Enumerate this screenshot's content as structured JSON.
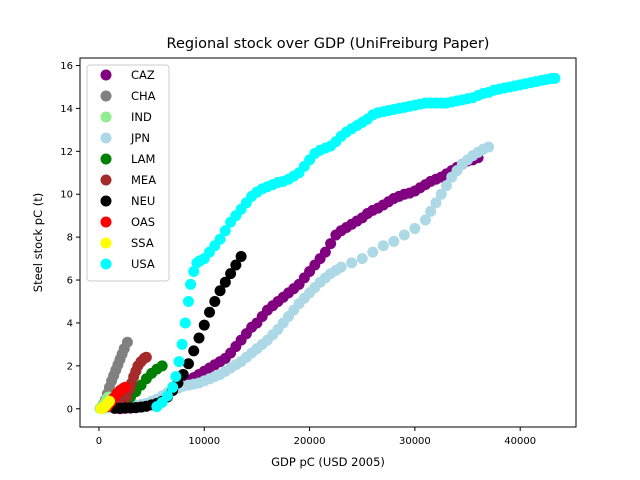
{
  "chart_data": {
    "type": "scatter",
    "title": "Regional stock over GDP (UniFreiburg Paper)",
    "xlabel": "GDP pC (USD 2005)",
    "ylabel": "Steel stock pC (t)",
    "xlim": [
      -1800,
      45300
    ],
    "ylim": [
      -0.85,
      16.35
    ],
    "x_ticks": [
      0,
      10000,
      20000,
      30000,
      40000
    ],
    "y_ticks": [
      0,
      2,
      4,
      6,
      8,
      10,
      12,
      14,
      16
    ],
    "grid": false,
    "legend_position": "top-left",
    "series": [
      {
        "name": "CAZ",
        "color": "#800080",
        "points": [
          [
            2000,
            0.0
          ],
          [
            2500,
            0.02
          ],
          [
            3000,
            0.03
          ],
          [
            3500,
            0.05
          ],
          [
            4000,
            0.08
          ],
          [
            4500,
            0.12
          ],
          [
            5000,
            0.2
          ],
          [
            5500,
            0.35
          ],
          [
            6000,
            0.55
          ],
          [
            6500,
            0.7
          ],
          [
            7000,
            0.85
          ],
          [
            7500,
            1.0
          ],
          [
            8000,
            1.15
          ],
          [
            8500,
            1.3
          ],
          [
            9000,
            1.45
          ],
          [
            9500,
            1.6
          ],
          [
            10000,
            1.75
          ],
          [
            10500,
            1.9
          ],
          [
            11000,
            2.05
          ],
          [
            11500,
            2.2
          ],
          [
            12000,
            2.35
          ],
          [
            12500,
            2.6
          ],
          [
            13000,
            2.9
          ],
          [
            13500,
            3.2
          ],
          [
            14000,
            3.5
          ],
          [
            14500,
            3.8
          ],
          [
            15000,
            4.0
          ],
          [
            15500,
            4.3
          ],
          [
            16000,
            4.6
          ],
          [
            16500,
            4.8
          ],
          [
            17000,
            5.0
          ],
          [
            17500,
            5.2
          ],
          [
            18000,
            5.4
          ],
          [
            18500,
            5.6
          ],
          [
            19000,
            5.8
          ],
          [
            19500,
            6.1
          ],
          [
            20000,
            6.4
          ],
          [
            20500,
            6.7
          ],
          [
            21000,
            7.0
          ],
          [
            21500,
            7.3
          ],
          [
            22000,
            7.7
          ],
          [
            22500,
            8.1
          ],
          [
            23000,
            8.3
          ],
          [
            23500,
            8.45
          ],
          [
            24000,
            8.6
          ],
          [
            24500,
            8.75
          ],
          [
            25000,
            8.9
          ],
          [
            25500,
            9.1
          ],
          [
            26000,
            9.25
          ],
          [
            26500,
            9.35
          ],
          [
            27000,
            9.5
          ],
          [
            27500,
            9.65
          ],
          [
            28000,
            9.8
          ],
          [
            28500,
            9.9
          ],
          [
            29000,
            10.0
          ],
          [
            29500,
            10.05
          ],
          [
            30000,
            10.15
          ],
          [
            30500,
            10.3
          ],
          [
            31000,
            10.45
          ],
          [
            31500,
            10.6
          ],
          [
            32000,
            10.7
          ],
          [
            32500,
            10.8
          ],
          [
            33000,
            10.95
          ],
          [
            33500,
            11.1
          ],
          [
            34000,
            11.25
          ],
          [
            34500,
            11.4
          ],
          [
            35000,
            11.55
          ],
          [
            35500,
            11.6
          ],
          [
            36000,
            11.7
          ]
        ]
      },
      {
        "name": "CHA",
        "color": "#808080",
        "points": [
          [
            200,
            0.05
          ],
          [
            400,
            0.2
          ],
          [
            600,
            0.4
          ],
          [
            800,
            0.7
          ],
          [
            1000,
            1.0
          ],
          [
            1200,
            1.3
          ],
          [
            1400,
            1.55
          ],
          [
            1600,
            1.8
          ],
          [
            1800,
            2.05
          ],
          [
            2000,
            2.3
          ],
          [
            2200,
            2.55
          ],
          [
            2400,
            2.8
          ],
          [
            2700,
            3.1
          ]
        ]
      },
      {
        "name": "IND",
        "color": "#90ee90",
        "points": [
          [
            100,
            0.02
          ],
          [
            200,
            0.05
          ],
          [
            300,
            0.1
          ],
          [
            400,
            0.15
          ],
          [
            500,
            0.22
          ],
          [
            600,
            0.3
          ],
          [
            700,
            0.4
          ],
          [
            800,
            0.5
          ],
          [
            900,
            0.55
          ]
        ]
      },
      {
        "name": "JPN",
        "color": "#add8e6",
        "points": [
          [
            500,
            0.02
          ],
          [
            1000,
            0.04
          ],
          [
            1500,
            0.06
          ],
          [
            2000,
            0.08
          ],
          [
            2500,
            0.1
          ],
          [
            3000,
            0.12
          ],
          [
            3500,
            0.15
          ],
          [
            4000,
            0.2
          ],
          [
            4500,
            0.25
          ],
          [
            5000,
            0.35
          ],
          [
            5500,
            0.45
          ],
          [
            6000,
            0.6
          ],
          [
            6500,
            0.75
          ],
          [
            7000,
            0.85
          ],
          [
            7500,
            0.95
          ],
          [
            8000,
            1.05
          ],
          [
            8500,
            1.1
          ],
          [
            9000,
            1.15
          ],
          [
            9500,
            1.2
          ],
          [
            10000,
            1.3
          ],
          [
            10500,
            1.4
          ],
          [
            11000,
            1.5
          ],
          [
            11500,
            1.6
          ],
          [
            12000,
            1.75
          ],
          [
            12500,
            1.9
          ],
          [
            13000,
            2.05
          ],
          [
            13500,
            2.2
          ],
          [
            14000,
            2.4
          ],
          [
            14500,
            2.6
          ],
          [
            15000,
            2.8
          ],
          [
            15500,
            3.0
          ],
          [
            16000,
            3.2
          ],
          [
            16500,
            3.45
          ],
          [
            17000,
            3.7
          ],
          [
            17500,
            4.0
          ],
          [
            18000,
            4.3
          ],
          [
            18500,
            4.6
          ],
          [
            19000,
            4.9
          ],
          [
            19500,
            5.15
          ],
          [
            20000,
            5.4
          ],
          [
            20500,
            5.65
          ],
          [
            21000,
            5.9
          ],
          [
            21500,
            6.1
          ],
          [
            22000,
            6.3
          ],
          [
            22500,
            6.45
          ],
          [
            23000,
            6.6
          ],
          [
            24000,
            6.8
          ],
          [
            25000,
            7.0
          ],
          [
            26000,
            7.3
          ],
          [
            27000,
            7.6
          ],
          [
            28000,
            7.8
          ],
          [
            29000,
            8.1
          ],
          [
            30000,
            8.4
          ],
          [
            31000,
            8.8
          ],
          [
            31500,
            9.2
          ],
          [
            32000,
            9.6
          ],
          [
            32500,
            10.0
          ],
          [
            33000,
            10.4
          ],
          [
            33500,
            10.8
          ],
          [
            34000,
            11.1
          ],
          [
            34500,
            11.4
          ],
          [
            35000,
            11.6
          ],
          [
            35500,
            11.8
          ],
          [
            36000,
            11.95
          ],
          [
            36500,
            12.1
          ],
          [
            37000,
            12.2
          ]
        ]
      },
      {
        "name": "LAM",
        "color": "#008000",
        "points": [
          [
            1500,
            0.1
          ],
          [
            2000,
            0.2
          ],
          [
            2500,
            0.35
          ],
          [
            3000,
            0.55
          ],
          [
            3500,
            0.8
          ],
          [
            4000,
            1.1
          ],
          [
            4500,
            1.4
          ],
          [
            5000,
            1.65
          ],
          [
            5500,
            1.85
          ],
          [
            6000,
            2.0
          ]
        ]
      },
      {
        "name": "MEA",
        "color": "#a52a2a",
        "points": [
          [
            2000,
            0.1
          ],
          [
            2300,
            0.3
          ],
          [
            2600,
            0.55
          ],
          [
            2900,
            0.9
          ],
          [
            3100,
            1.2
          ],
          [
            3300,
            1.5
          ],
          [
            3500,
            1.75
          ],
          [
            3700,
            2.0
          ],
          [
            4000,
            2.2
          ],
          [
            4300,
            2.35
          ],
          [
            4500,
            2.4
          ]
        ]
      },
      {
        "name": "NEU",
        "color": "#000000",
        "points": [
          [
            1500,
            0.02
          ],
          [
            2000,
            0.03
          ],
          [
            2500,
            0.04
          ],
          [
            3000,
            0.05
          ],
          [
            3500,
            0.06
          ],
          [
            4000,
            0.08
          ],
          [
            4500,
            0.12
          ],
          [
            5000,
            0.18
          ],
          [
            5500,
            0.25
          ],
          [
            6000,
            0.35
          ],
          [
            6500,
            0.55
          ],
          [
            7000,
            0.85
          ],
          [
            7500,
            1.2
          ],
          [
            8000,
            1.6
          ],
          [
            8500,
            2.1
          ],
          [
            9000,
            2.7
          ],
          [
            9500,
            3.3
          ],
          [
            10000,
            3.9
          ],
          [
            10500,
            4.5
          ],
          [
            11000,
            5.0
          ],
          [
            11500,
            5.5
          ],
          [
            12000,
            5.9
          ],
          [
            12500,
            6.3
          ],
          [
            13000,
            6.7
          ],
          [
            13500,
            7.1
          ]
        ]
      },
      {
        "name": "OAS",
        "color": "#ff0000",
        "points": [
          [
            800,
            0.1
          ],
          [
            1100,
            0.3
          ],
          [
            1400,
            0.5
          ],
          [
            1700,
            0.7
          ],
          [
            2000,
            0.85
          ],
          [
            2300,
            0.95
          ],
          [
            2500,
            1.0
          ]
        ]
      },
      {
        "name": "SSA",
        "color": "#ffff00",
        "points": [
          [
            200,
            0.01
          ],
          [
            300,
            0.02
          ],
          [
            400,
            0.05
          ],
          [
            500,
            0.08
          ],
          [
            600,
            0.12
          ],
          [
            700,
            0.18
          ],
          [
            800,
            0.25
          ],
          [
            900,
            0.3
          ],
          [
            1000,
            0.35
          ]
        ]
      },
      {
        "name": "USA",
        "color": "#00ffff",
        "points": [
          [
            5500,
            0.1
          ],
          [
            6000,
            0.3
          ],
          [
            6500,
            0.6
          ],
          [
            7000,
            1.0
          ],
          [
            7300,
            1.5
          ],
          [
            7600,
            2.2
          ],
          [
            7900,
            3.0
          ],
          [
            8200,
            4.0
          ],
          [
            8500,
            5.0
          ],
          [
            8700,
            5.8
          ],
          [
            9000,
            6.4
          ],
          [
            9300,
            6.8
          ],
          [
            9600,
            6.9
          ],
          [
            10000,
            7.0
          ],
          [
            10500,
            7.3
          ],
          [
            11000,
            7.6
          ],
          [
            11500,
            7.9
          ],
          [
            12000,
            8.3
          ],
          [
            12500,
            8.7
          ],
          [
            13000,
            9.0
          ],
          [
            13500,
            9.3
          ],
          [
            14000,
            9.6
          ],
          [
            14500,
            9.9
          ],
          [
            15000,
            10.1
          ],
          [
            15500,
            10.25
          ],
          [
            16000,
            10.35
          ],
          [
            16500,
            10.45
          ],
          [
            17000,
            10.55
          ],
          [
            17500,
            10.6
          ],
          [
            18000,
            10.7
          ],
          [
            18500,
            10.85
          ],
          [
            19000,
            11.0
          ],
          [
            19500,
            11.3
          ],
          [
            20000,
            11.6
          ],
          [
            20500,
            11.9
          ],
          [
            21000,
            12.05
          ],
          [
            21500,
            12.15
          ],
          [
            22000,
            12.25
          ],
          [
            22500,
            12.45
          ],
          [
            23000,
            12.7
          ],
          [
            23500,
            12.9
          ],
          [
            24000,
            13.05
          ],
          [
            24500,
            13.2
          ],
          [
            25000,
            13.35
          ],
          [
            25500,
            13.5
          ],
          [
            26000,
            13.7
          ],
          [
            26500,
            13.8
          ],
          [
            27000,
            13.85
          ],
          [
            27500,
            13.9
          ],
          [
            28000,
            13.95
          ],
          [
            28500,
            14.0
          ],
          [
            29000,
            14.05
          ],
          [
            29500,
            14.1
          ],
          [
            30000,
            14.15
          ],
          [
            30500,
            14.2
          ],
          [
            31000,
            14.25
          ],
          [
            31500,
            14.25
          ],
          [
            32000,
            14.25
          ],
          [
            32500,
            14.25
          ],
          [
            33000,
            14.25
          ],
          [
            33500,
            14.3
          ],
          [
            34000,
            14.35
          ],
          [
            34500,
            14.4
          ],
          [
            35000,
            14.45
          ],
          [
            35500,
            14.5
          ],
          [
            36000,
            14.6
          ],
          [
            36500,
            14.7
          ],
          [
            37000,
            14.75
          ],
          [
            37500,
            14.85
          ],
          [
            38000,
            14.9
          ],
          [
            38500,
            14.95
          ],
          [
            39000,
            15.0
          ],
          [
            39500,
            15.05
          ],
          [
            40000,
            15.1
          ],
          [
            40500,
            15.15
          ],
          [
            41000,
            15.2
          ],
          [
            41500,
            15.25
          ],
          [
            42000,
            15.3
          ],
          [
            42500,
            15.35
          ],
          [
            43000,
            15.4
          ],
          [
            43300,
            15.4
          ]
        ]
      }
    ]
  }
}
